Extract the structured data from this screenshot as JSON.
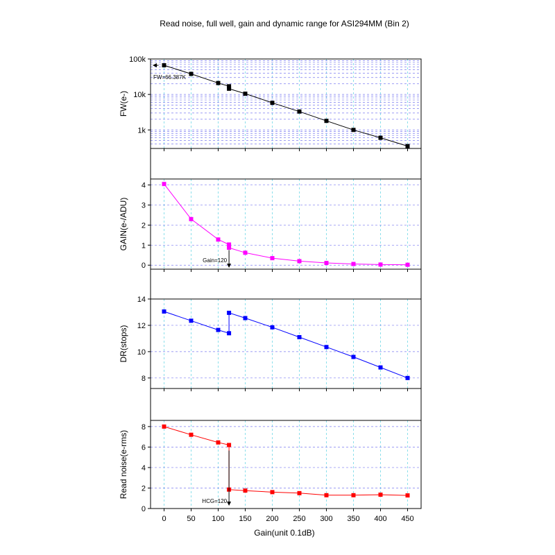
{
  "figure": {
    "title": "Read noise, full well, gain and dynamic range for ASI294MM (Bin 2)",
    "xlabel": "Gain(unit 0.1dB)",
    "x_ticks": [
      0,
      50,
      100,
      150,
      200,
      250,
      300,
      350,
      400,
      450
    ],
    "xlim": [
      -25,
      475
    ]
  },
  "chart_data": [
    {
      "type": "line",
      "ylabel": "FW(e-)",
      "yscale": "log",
      "ylim": [
        300,
        100000
      ],
      "y_ticks": [
        1000,
        10000,
        100000
      ],
      "y_tick_labels": [
        "1k",
        "10k",
        "100k"
      ],
      "grid": true,
      "color": "#000000",
      "x": [
        0,
        50,
        100,
        120,
        120,
        150,
        200,
        250,
        300,
        350,
        400,
        450
      ],
      "y": [
        66387,
        38000,
        21000,
        17000,
        14500,
        10500,
        5800,
        3300,
        1800,
        1000,
        600,
        350
      ],
      "annotation": {
        "text": "FW=66.387K",
        "x": 0,
        "y": 66387
      }
    },
    {
      "type": "line",
      "ylabel": "GAIN(e-/ADU)",
      "yscale": "linear",
      "ylim": [
        -0.2,
        4.3
      ],
      "y_ticks": [
        0,
        1,
        2,
        3,
        4
      ],
      "y_tick_labels": [
        "0",
        "1",
        "2",
        "3",
        "4"
      ],
      "grid": true,
      "color": "#ff00ff",
      "x": [
        0,
        50,
        100,
        120,
        120,
        150,
        200,
        250,
        300,
        350,
        400,
        450
      ],
      "y": [
        4.05,
        2.3,
        1.28,
        1.03,
        0.87,
        0.62,
        0.35,
        0.2,
        0.11,
        0.06,
        0.03,
        0.02
      ],
      "annotation": {
        "text": "Gain=120",
        "x": 120,
        "y": 0.7
      }
    },
    {
      "type": "line",
      "ylabel": "DR(stops)",
      "yscale": "linear",
      "ylim": [
        7.2,
        14.0
      ],
      "y_ticks": [
        8,
        10,
        12,
        14
      ],
      "y_tick_labels": [
        "8",
        "10",
        "12",
        "14"
      ],
      "grid": true,
      "color": "#0000ff",
      "x": [
        0,
        50,
        100,
        120,
        120,
        150,
        200,
        250,
        300,
        350,
        400,
        450
      ],
      "y": [
        13.05,
        12.35,
        11.65,
        11.4,
        12.95,
        12.55,
        11.85,
        11.1,
        10.35,
        9.6,
        8.8,
        8.0
      ]
    },
    {
      "type": "line",
      "ylabel": "Read noise(e-rms)",
      "yscale": "linear",
      "ylim": [
        0,
        8.6
      ],
      "y_ticks": [
        0,
        2,
        4,
        6,
        8
      ],
      "y_tick_labels": [
        "0",
        "2",
        "4",
        "6",
        "8"
      ],
      "grid": true,
      "color": "#ff0000",
      "x": [
        0,
        50,
        100,
        120,
        120,
        150,
        200,
        250,
        300,
        350,
        400,
        450
      ],
      "y": [
        8.0,
        7.2,
        6.45,
        6.2,
        1.85,
        1.75,
        1.6,
        1.5,
        1.3,
        1.3,
        1.35,
        1.28
      ],
      "annotation": {
        "text": "HCG=120",
        "x": 120,
        "y": 0.6
      }
    }
  ]
}
